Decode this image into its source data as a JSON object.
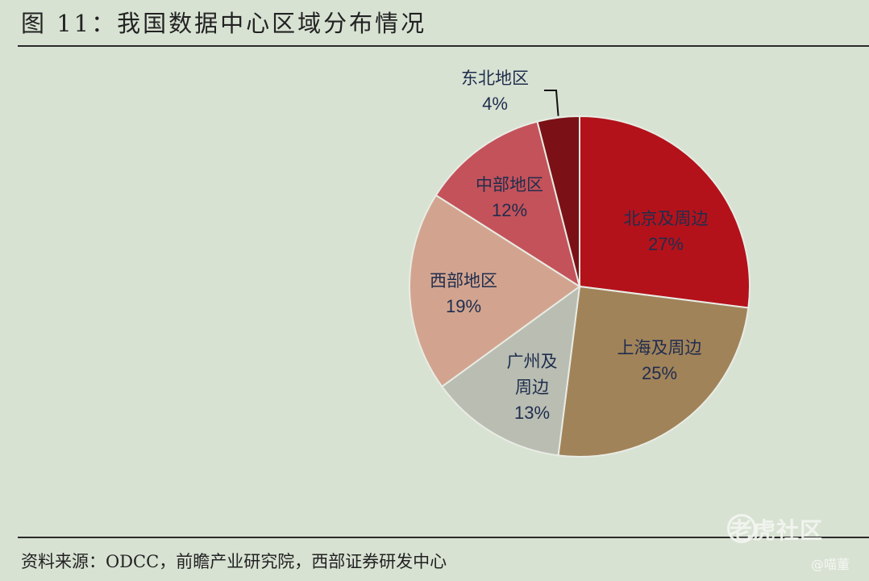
{
  "header": {
    "title": "图 11：我国数据中心区域分布情况"
  },
  "footer": {
    "source": "资料来源：ODCC，前瞻产业研究院，西部证券研发中心",
    "watermark": "老虎社区",
    "author": "@喵董"
  },
  "chart_data": {
    "type": "pie",
    "title": "",
    "slices": [
      {
        "label": "北京及周边",
        "value": 27,
        "value_text": "27%",
        "color": "#b3121b",
        "label_lines": [
          "北京及周边"
        ]
      },
      {
        "label": "上海及周边",
        "value": 25,
        "value_text": "25%",
        "color": "#a1835a",
        "label_lines": [
          "上海及周边"
        ]
      },
      {
        "label": "广州及周边",
        "value": 13,
        "value_text": "13%",
        "color": "#b9bdb2",
        "label_lines": [
          "广州及",
          "周边"
        ]
      },
      {
        "label": "西部地区",
        "value": 19,
        "value_text": "19%",
        "color": "#d2a48f",
        "label_lines": [
          "西部地区"
        ]
      },
      {
        "label": "中部地区",
        "value": 12,
        "value_text": "12%",
        "color": "#c4525a",
        "label_lines": [
          "中部地区"
        ]
      },
      {
        "label": "东北地区",
        "value": 4,
        "value_text": "4%",
        "color": "#7b1116",
        "label_lines": [
          "东北地区"
        ]
      }
    ],
    "start_angle_deg": 0,
    "direction": "clockwise",
    "legend": "none"
  }
}
